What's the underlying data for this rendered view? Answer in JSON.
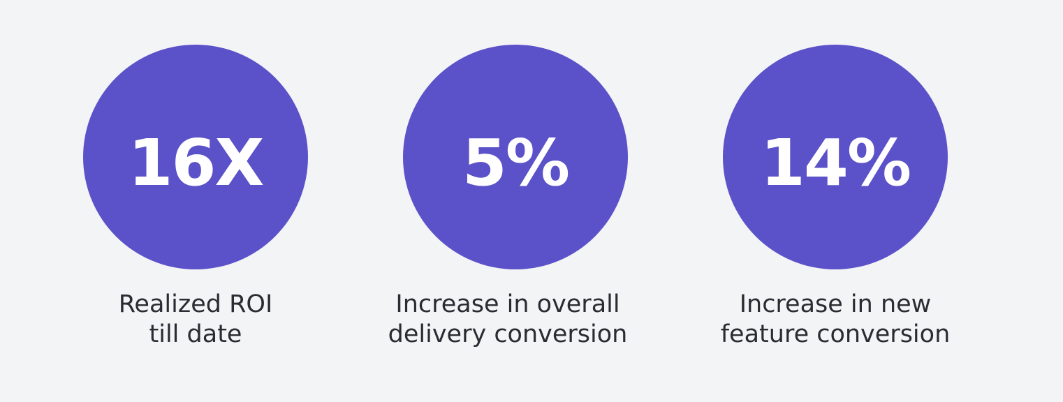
{
  "stats": [
    {
      "value": "16X",
      "label": [
        "Realized ROI",
        "till date"
      ]
    },
    {
      "value": "5%",
      "label": [
        "Increase in overall",
        "delivery conversion"
      ]
    },
    {
      "value": "14%",
      "label": [
        "Increase in new",
        "feature conversion"
      ]
    }
  ]
}
